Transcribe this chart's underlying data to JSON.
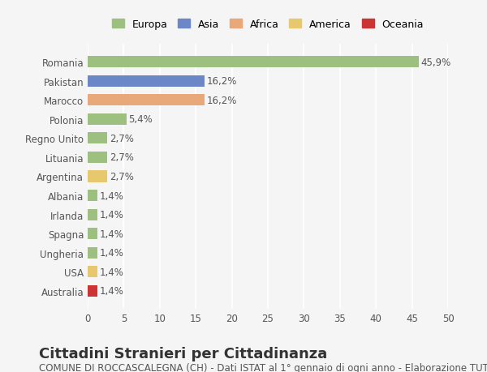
{
  "categories": [
    "Australia",
    "USA",
    "Ungheria",
    "Spagna",
    "Irlanda",
    "Albania",
    "Argentina",
    "Lituania",
    "Regno Unito",
    "Polonia",
    "Marocco",
    "Pakistan",
    "Romania"
  ],
  "values": [
    1.4,
    1.4,
    1.4,
    1.4,
    1.4,
    1.4,
    2.7,
    2.7,
    2.7,
    5.4,
    16.2,
    16.2,
    45.9
  ],
  "labels": [
    "1,4%",
    "1,4%",
    "1,4%",
    "1,4%",
    "1,4%",
    "1,4%",
    "2,7%",
    "2,7%",
    "2,7%",
    "5,4%",
    "16,2%",
    "16,2%",
    "45,9%"
  ],
  "colors": [
    "#cc3333",
    "#e8c86e",
    "#9dc080",
    "#9dc080",
    "#9dc080",
    "#9dc080",
    "#e8c86e",
    "#9dc080",
    "#9dc080",
    "#9dc080",
    "#e8a87a",
    "#6b87c7",
    "#9dc080"
  ],
  "continents": [
    "Oceania",
    "America",
    "Europa",
    "Europa",
    "Europa",
    "Europa",
    "America",
    "Europa",
    "Europa",
    "Europa",
    "Africa",
    "Asia",
    "Europa"
  ],
  "legend_labels": [
    "Europa",
    "Asia",
    "Africa",
    "America",
    "Oceania"
  ],
  "legend_colors": [
    "#9dc080",
    "#6b87c7",
    "#e8a87a",
    "#e8c86e",
    "#cc3333"
  ],
  "title": "Cittadini Stranieri per Cittadinanza",
  "subtitle": "COMUNE DI ROCCASCALEGNA (CH) - Dati ISTAT al 1° gennaio di ogni anno - Elaborazione TUTTITALIA.IT",
  "xlim": [
    0,
    50
  ],
  "xticks": [
    0,
    5,
    10,
    15,
    20,
    25,
    30,
    35,
    40,
    45,
    50
  ],
  "bg_color": "#f5f5f5",
  "bar_height": 0.6,
  "grid_color": "#ffffff",
  "tick_label_color": "#555555",
  "title_fontsize": 13,
  "subtitle_fontsize": 8.5,
  "label_fontsize": 8.5,
  "axis_fontsize": 8.5
}
